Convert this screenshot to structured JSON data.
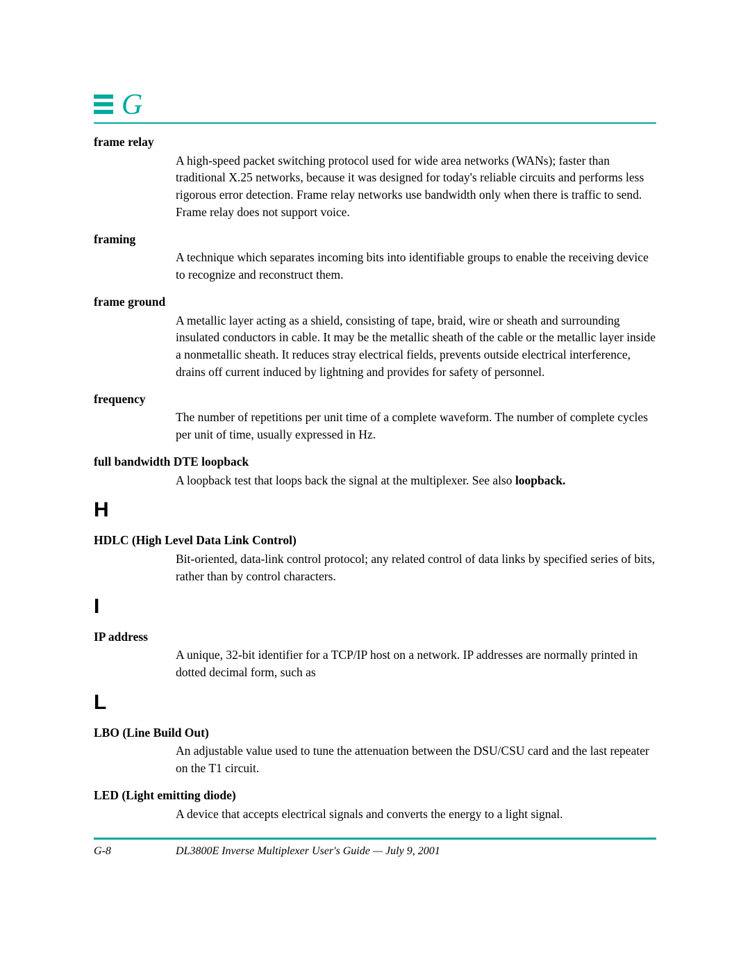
{
  "header": {
    "letter": "G",
    "accent_color": "#00a99d"
  },
  "sections": [
    {
      "entries": [
        {
          "term": "frame relay",
          "def": "A high-speed packet switching protocol used for wide area networks (WANs); faster than traditional X.25 networks, because it was designed for today's reliable circuits and performs less rigorous error detection. Frame relay networks use bandwidth only when there is traffic to send. Frame relay does not support voice."
        },
        {
          "term": "framing",
          "def": "A technique which separates incoming bits into identifiable groups to enable the receiving device to recognize and reconstruct them."
        },
        {
          "term": "frame ground",
          "def": "A metallic layer acting as a shield, consisting of tape, braid, wire or sheath and surrounding insulated conductors in cable. It may be the metallic sheath of the cable or the metallic layer inside a nonmetallic sheath. It reduces stray electrical fields, prevents outside electrical interference, drains off current induced by lightning and provides for safety of personnel."
        },
        {
          "term": "frequency",
          "def": "The number of repetitions per unit time of a complete waveform. The number of complete cycles per unit of time, usually expressed in Hz."
        },
        {
          "term": "full bandwidth DTE loopback",
          "def_pre": "A loopback test that loops back the signal at the multiplexer. See also ",
          "def_bold": "loopback.",
          "def_post": ""
        }
      ]
    },
    {
      "letter": "H",
      "entries": [
        {
          "term": "HDLC (High Level Data Link Control)",
          "def": "Bit-oriented, data-link control protocol; any related control of data links by specified series of bits, rather than by control characters."
        }
      ]
    },
    {
      "letter": "I",
      "entries": [
        {
          "term": "IP address",
          "def": "A unique, 32-bit identifier for a TCP/IP host on a network. IP addresses are normally printed in dotted decimal form, such as"
        }
      ]
    },
    {
      "letter": "L",
      "entries": [
        {
          "term": "LBO (Line Build Out)",
          "def": "An adjustable value used to tune the attenuation between the DSU/CSU card and the last repeater on the T1 circuit."
        },
        {
          "term": "LED (Light emitting diode)",
          "def": "A device that accepts electrical signals and converts the energy to a light signal."
        }
      ]
    }
  ],
  "footer": {
    "page_number": "G-8",
    "title": "DL3800E Inverse Multiplexer User's Guide — July 9, 2001"
  }
}
